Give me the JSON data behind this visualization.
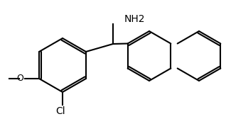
{
  "bg_color": "#ffffff",
  "line_color": "#000000",
  "text_color": "#000000",
  "line_width": 1.5,
  "font_size": 9,
  "nh2_label": "NH2",
  "cl_label": "Cl",
  "o_label": "O",
  "ch3o_label": "O"
}
